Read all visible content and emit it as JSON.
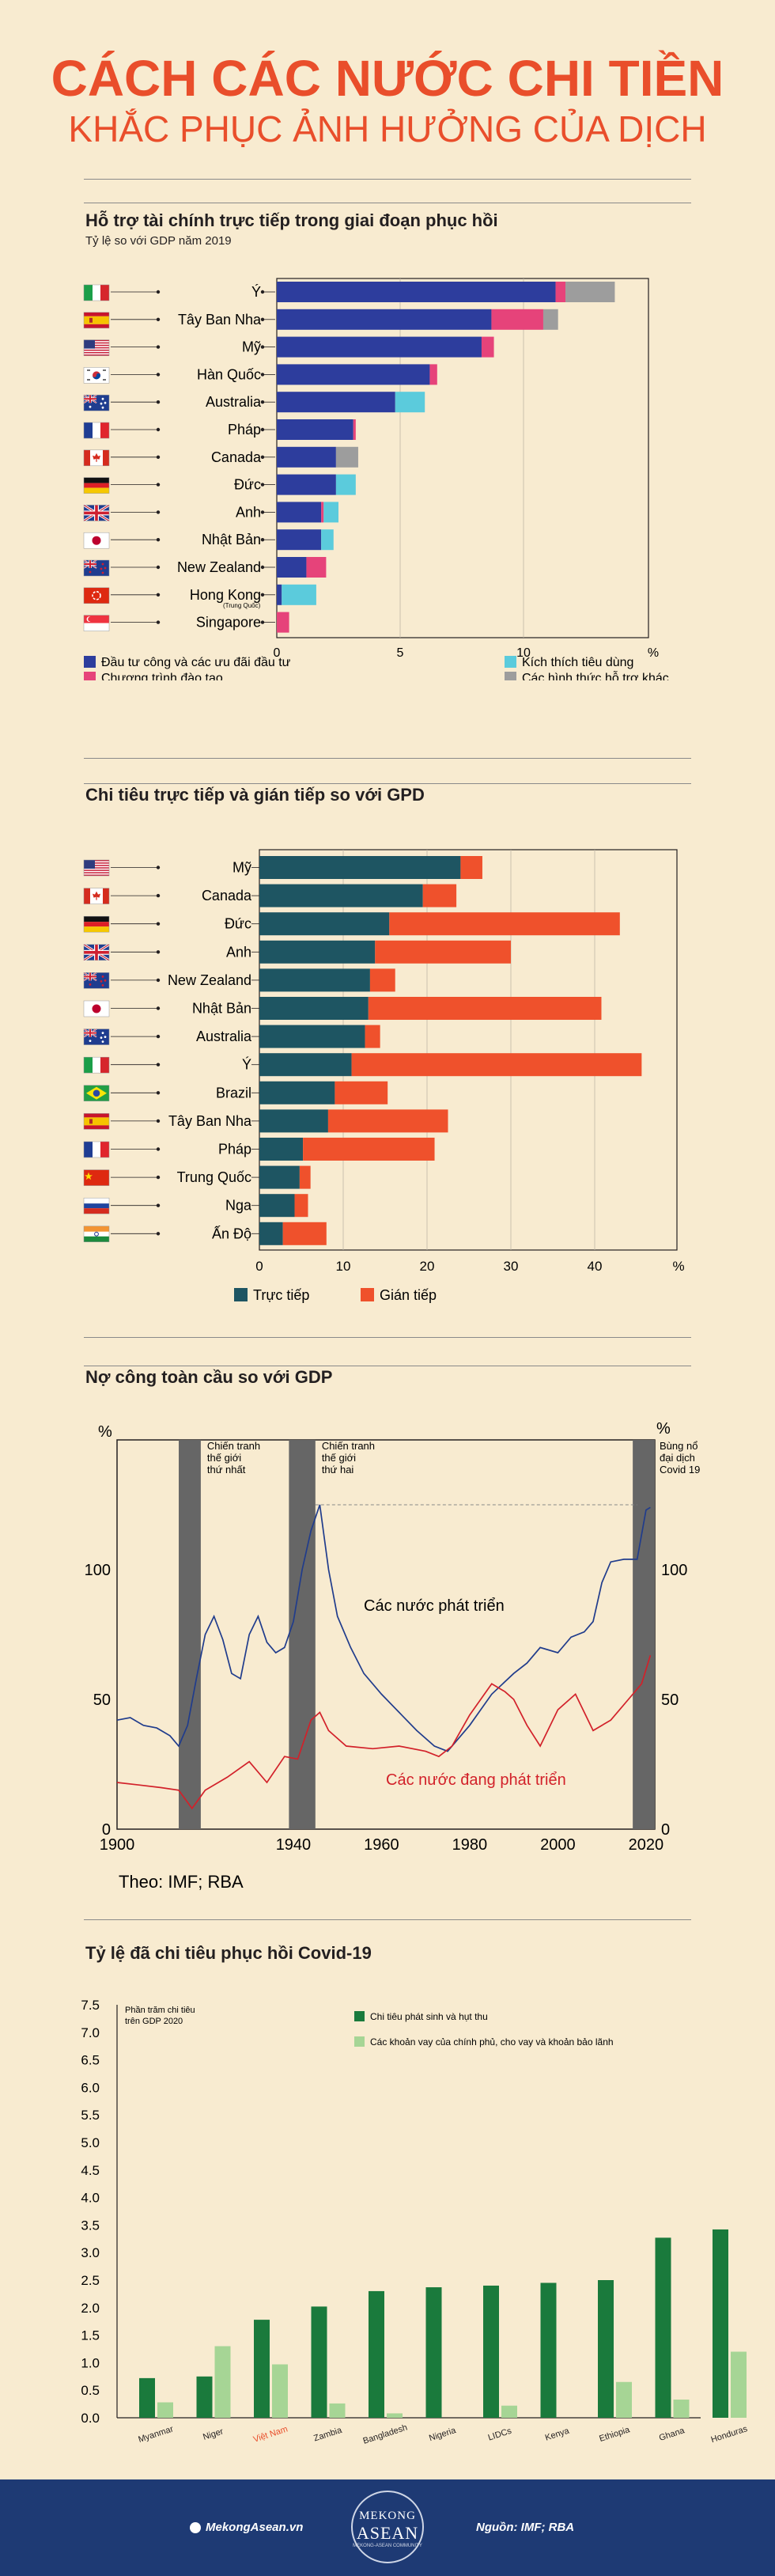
{
  "header": {
    "title": "CÁCH CÁC NƯỚC CHI TIỀN",
    "subtitle": "KHẮC PHỤC ẢNH HƯỞNG CỦA DỊCH"
  },
  "colors": {
    "blue": "#2d3d9d",
    "pink": "#e6437a",
    "cyan": "#5bcbdc",
    "gray": "#9d9d9d",
    "teal": "#1e5562",
    "orange": "#ef512c",
    "navy": "#203c8c",
    "red": "#d2212a",
    "darkgreen": "#1a7a3c",
    "lightgreen": "#a6d595"
  },
  "chart_data": [
    {
      "type": "bar",
      "title": "Hỗ trợ tài chính trực tiếp trong giai đoạn phục hồi",
      "subtitle": "Tỷ lệ so với GDP năm 2019",
      "unit": "%",
      "xlim": [
        0,
        15
      ],
      "ticks": [
        "0",
        "5",
        "10",
        "%"
      ],
      "tick_values": [
        0,
        5,
        10
      ],
      "categories": [
        "Ý",
        "Tây Ban Nha",
        "Mỹ",
        "Hàn Quốc",
        "Australia",
        "Pháp",
        "Canada",
        "Đức",
        "Anh",
        "Nhật Bản",
        "New Zealand",
        "Hong Kong",
        "Singapore"
      ],
      "hk_note": "(Trung Quốc)",
      "flags": [
        "it",
        "es",
        "us",
        "kr",
        "au",
        "fr",
        "ca",
        "de",
        "gb",
        "jp",
        "nz",
        "hk",
        "sg"
      ],
      "series": [
        {
          "name": "Đầu tư công và các ưu đãi đầu tư",
          "values": [
            11.3,
            8.7,
            8.3,
            6.2,
            4.8,
            3.1,
            2.4,
            2.4,
            1.8,
            1.8,
            1.2,
            0.2,
            0.0
          ]
        },
        {
          "name": "Chương trình đào tạo",
          "values": [
            0.4,
            2.1,
            0.5,
            0.3,
            0.0,
            0.1,
            0.0,
            0.0,
            0.1,
            0.0,
            0.8,
            0.0,
            0.5
          ]
        },
        {
          "name": "Kích thích tiêu dùng",
          "values": [
            0.0,
            0.0,
            0.0,
            0.0,
            1.2,
            0.0,
            0.0,
            0.8,
            0.6,
            0.5,
            0.0,
            1.4,
            0.0
          ]
        },
        {
          "name": "Các hình thức hỗ trợ khác",
          "values": [
            2.0,
            0.6,
            0.0,
            0.0,
            0.0,
            0.0,
            0.9,
            0.0,
            0.0,
            0.0,
            0.0,
            0.0,
            0.0
          ]
        }
      ]
    },
    {
      "type": "bar",
      "title": "Chi tiêu trực tiếp và gián tiếp so với GPD",
      "unit": "%",
      "xlim": [
        0,
        50
      ],
      "ticks": [
        "0",
        "10",
        "20",
        "30",
        "40",
        "%"
      ],
      "tick_values": [
        0,
        10,
        20,
        30,
        40
      ],
      "categories": [
        "Mỹ",
        "Canada",
        "Đức",
        "Anh",
        "New Zealand",
        "Nhật Bản",
        "Australia",
        "Ý",
        "Brazil",
        "Tây Ban Nha",
        "Pháp",
        "Trung Quốc",
        "Nga",
        "Ấn Độ"
      ],
      "flags": [
        "us",
        "ca",
        "de",
        "gb",
        "nz",
        "jp",
        "au",
        "it",
        "br",
        "es",
        "fr",
        "cn",
        "ru",
        "in"
      ],
      "series": [
        {
          "name": "Trực tiếp",
          "values": [
            24,
            19.5,
            15.5,
            13.8,
            13.2,
            13,
            12.6,
            11,
            9,
            8.2,
            5.2,
            4.8,
            4.2,
            2.8
          ]
        },
        {
          "name": "Gián tiếp",
          "values": [
            2.6,
            4,
            27.5,
            16.2,
            3,
            27.8,
            1.8,
            34.6,
            6.3,
            14.3,
            15.7,
            1.3,
            1.6,
            5.2
          ]
        }
      ]
    },
    {
      "type": "line",
      "title": "Nợ công toàn cầu so với GDP",
      "ylabel": "%",
      "ylim": [
        0,
        150
      ],
      "yticks": [
        "0",
        "50",
        "100"
      ],
      "xticks": [
        "1900",
        "1940",
        "1960",
        "1980",
        "2000",
        "2020"
      ],
      "xlim": [
        1900,
        2022
      ],
      "source": "Theo: IMF; RBA",
      "bands": [
        {
          "label": "Chiến tranh thế giới thứ nhất",
          "lines": [
            "Chiến tranh",
            "thế giới",
            "thứ nhất"
          ],
          "start": 1914,
          "end": 1919
        },
        {
          "label": "Chiến tranh thế giới thứ hai",
          "lines": [
            "Chiến tranh",
            "thế giới",
            "thứ hai"
          ],
          "start": 1939,
          "end": 1945
        },
        {
          "label": "Bùng nổ đại dịch Covid 19",
          "lines": [
            "Bùng nổ",
            "đại dịch",
            "Covid 19"
          ],
          "start": 2017,
          "end": 2022
        }
      ],
      "series": [
        {
          "name": "Các nước phát triển",
          "x": [
            1900,
            1903,
            1906,
            1909,
            1912,
            1914,
            1916,
            1918,
            1920,
            1922,
            1924,
            1926,
            1928,
            1930,
            1932,
            1934,
            1936,
            1938,
            1940,
            1942,
            1944,
            1946,
            1948,
            1950,
            1953,
            1956,
            1960,
            1964,
            1968,
            1972,
            1975,
            1980,
            1985,
            1990,
            1993,
            1996,
            2000,
            2003,
            2006,
            2008,
            2010,
            2012,
            2015,
            2018,
            2020,
            2021
          ],
          "y": [
            42,
            43,
            40,
            39,
            36,
            32,
            40,
            58,
            75,
            82,
            73,
            60,
            58,
            75,
            82,
            72,
            68,
            70,
            80,
            100,
            115,
            125,
            100,
            82,
            70,
            60,
            52,
            45,
            38,
            32,
            30,
            40,
            52,
            60,
            64,
            70,
            68,
            74,
            76,
            80,
            95,
            103,
            104,
            104,
            123,
            124
          ]
        },
        {
          "name": "Các nước đang phát triển",
          "x": [
            1900,
            1905,
            1910,
            1914,
            1917,
            1920,
            1925,
            1930,
            1934,
            1938,
            1941,
            1944,
            1946,
            1948,
            1952,
            1958,
            1964,
            1970,
            1973,
            1976,
            1980,
            1985,
            1988,
            1990,
            1993,
            1996,
            2000,
            2004,
            2008,
            2012,
            2016,
            2019,
            2021
          ],
          "y": [
            18,
            17,
            16,
            15,
            8,
            15,
            20,
            26,
            18,
            28,
            27,
            42,
            45,
            38,
            32,
            31,
            32,
            30,
            28,
            32,
            44,
            56,
            53,
            50,
            40,
            32,
            46,
            52,
            38,
            42,
            50,
            56,
            67
          ]
        }
      ]
    },
    {
      "type": "bar",
      "title": "Tỷ lệ đã chi tiêu phục hồi Covid-19",
      "note_lines": [
        "Phần trăm chi tiêu",
        "trên GDP 2020"
      ],
      "ylim": [
        0,
        7.5
      ],
      "yticks": [
        "0.0",
        "0.5",
        "1.0",
        "1.5",
        "2.0",
        "2.5",
        "3.0",
        "3.5",
        "4.0",
        "4.5",
        "5.0",
        "5.5",
        "6.0",
        "6.5",
        "7.0",
        "7.5"
      ],
      "categories": [
        "Myanmar",
        "Niger",
        "Việt Nam",
        "Zambia",
        "Bangladesh",
        "Nigeria",
        "LIDCs",
        "Kenya",
        "Ethiopia",
        "Ghana",
        "Honduras"
      ],
      "series": [
        {
          "name": "Chi tiêu phát sinh và hụt thu",
          "values": [
            0.72,
            0.75,
            1.78,
            2.02,
            2.3,
            2.37,
            2.4,
            2.45,
            2.5,
            3.27,
            3.42
          ]
        },
        {
          "name": "Các khoản vay của chính phủ, cho vay và khoản bảo lãnh",
          "values": [
            0.28,
            1.3,
            0.97,
            0.26,
            0.08,
            0.0,
            0.22,
            0.0,
            0.65,
            0.33,
            1.2
          ]
        }
      ]
    }
  ],
  "sections": {
    "s1_title": "Hỗ trợ tài chính trực tiếp trong giai đoạn phục hồi",
    "s1_sub": "Tỷ lệ so với GDP năm 2019",
    "s2_title": "Chi tiêu trực tiếp và gián tiếp so với GPD",
    "s3_title": "Nợ công toàn cầu so với GDP",
    "s4_title": "Tỷ lệ đã chi tiêu phục hồi Covid-19"
  },
  "footer": {
    "site": "MekongAsean.vn",
    "logo_top": "MEKONG",
    "logo_main": "ASEAN",
    "logo_tag": "MEKONG-ASEAN COMMUNITY",
    "source": "Nguồn: IMF; RBA"
  }
}
